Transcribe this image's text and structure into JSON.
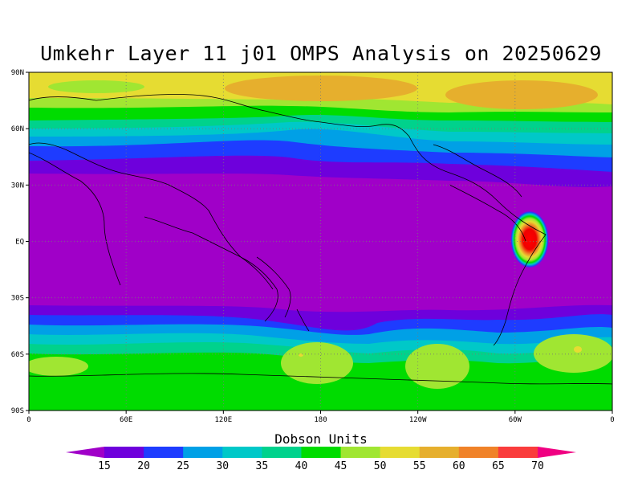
{
  "title": "Umkehr Layer 11 j01 OMPS Analysis on 20250629",
  "map": {
    "type": "filled-contour-map",
    "projection": "cylindrical equidistant",
    "lon_range": [
      0,
      360
    ],
    "lat_range": [
      -90,
      90
    ],
    "grid": "dotted",
    "x_ticks": [
      "0",
      "60E",
      "120E",
      "180",
      "120W",
      "60W",
      "0"
    ],
    "y_ticks": [
      "90N",
      "60N",
      "30N",
      "EQ",
      "30S",
      "60S",
      "90S"
    ]
  },
  "colorbar": {
    "title": "Dobson Units",
    "labels": [
      "15",
      "20",
      "25",
      "30",
      "35",
      "40",
      "45",
      "50",
      "55",
      "60",
      "65",
      "70"
    ],
    "colors": [
      "#a000c8",
      "#6e00dc",
      "#1e3cff",
      "#00a0e6",
      "#00c8c8",
      "#00d28c",
      "#00dc00",
      "#a0e632",
      "#e6dc32",
      "#e6af2d",
      "#f08228",
      "#fa3c3c",
      "#f00082"
    ]
  }
}
